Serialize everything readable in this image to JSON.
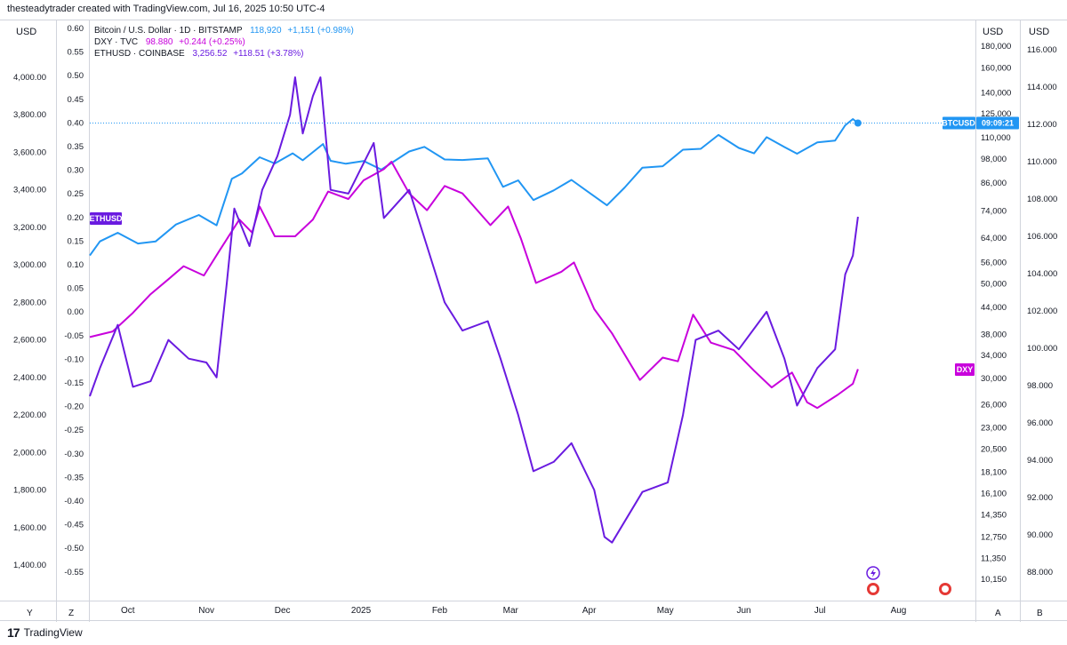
{
  "header": {
    "text": "thesteadytrader created with TradingView.com, Jul 16, 2025 10:50 UTC-4"
  },
  "footer": {
    "brand": "TradingView"
  },
  "scales": {
    "left_unit": "USD",
    "right_unit_1": "USD",
    "right_unit_2": "USD",
    "left_eth_ticks": [
      "4,000.00",
      "3,800.00",
      "3,600.00",
      "3,400.00",
      "3,200.00",
      "3,000.00",
      "2,800.00",
      "2,600.00",
      "2,400.00",
      "2,200.00",
      "2,000.00",
      "1,800.00",
      "1,600.00",
      "1,400.00"
    ],
    "left_dxy_change_ticks": [
      "0.60",
      "0.55",
      "0.50",
      "0.45",
      "0.40",
      "0.35",
      "0.30",
      "0.25",
      "0.20",
      "0.15",
      "0.10",
      "0.05",
      "0.00",
      "-0.05",
      "-0.10",
      "-0.15",
      "-0.20",
      "-0.25",
      "-0.30",
      "-0.35",
      "-0.40",
      "-0.45",
      "-0.50",
      "-0.55"
    ],
    "right_btc_ticks": [
      "180,000",
      "160,000",
      "140,000",
      "125,000",
      "110,000",
      "98,000",
      "86,000",
      "74,000",
      "64,000",
      "56,000",
      "50,000",
      "44,000",
      "38,000",
      "34,000",
      "30,000",
      "26,000",
      "23,000",
      "20,500",
      "18,100",
      "16,100",
      "14,350",
      "12,750",
      "11,350",
      "10,150"
    ],
    "right_dxy_ticks": [
      "116.000",
      "114.000",
      "112.000",
      "110.000",
      "108.000",
      "106.000",
      "104.000",
      "102.000",
      "100.000",
      "98.000",
      "96.000",
      "94.000",
      "92.000",
      "90.000",
      "88.000"
    ],
    "time_labels": [
      "Oct",
      "Nov",
      "Dec",
      "2025",
      "Feb",
      "Mar",
      "Apr",
      "May",
      "Jun",
      "Jul",
      "Aug"
    ],
    "bottom_left_buttons": [
      "Y",
      "Z"
    ],
    "bottom_right_buttons": [
      "A",
      "B"
    ]
  },
  "legend": {
    "btc": {
      "label": "Bitcoin / U.S. Dollar · 1D · BITSTAMP",
      "value": "118,920",
      "change": "+1,151 (+0.98%)",
      "color": "#2196f3"
    },
    "dxy": {
      "label": "DXY · TVC",
      "value": "98.880",
      "change": "+0.244 (+0.25%)",
      "color": "#c800dc"
    },
    "eth": {
      "label": "ETHUSD · COINBASE",
      "value": "3,256.52",
      "change": "+118.51 (+3.78%)",
      "color": "#6a1be0"
    }
  },
  "badges": {
    "eth": "ETHUSD",
    "dxy": "DXY",
    "btc_symbol": "BTCUSD",
    "btc_countdown": "09:09:21"
  },
  "chart_data": {
    "type": "line",
    "x_range": [
      "2024-09-16",
      "2025-08-31"
    ],
    "series": [
      {
        "name": "Bitcoin / U.S. Dollar",
        "color": "#2196f3",
        "scale": "BTC (log, USD)",
        "points": [
          [
            "2024-09-16",
            58200
          ],
          [
            "2024-09-20",
            62800
          ],
          [
            "2024-09-27",
            65800
          ],
          [
            "2024-10-05",
            62100
          ],
          [
            "2024-10-12",
            62800
          ],
          [
            "2024-10-20",
            68800
          ],
          [
            "2024-10-29",
            72400
          ],
          [
            "2024-11-05",
            68500
          ],
          [
            "2024-11-11",
            88000
          ],
          [
            "2024-11-15",
            90600
          ],
          [
            "2024-11-22",
            98900
          ],
          [
            "2024-11-28",
            95600
          ],
          [
            "2024-12-05",
            101000
          ],
          [
            "2024-12-09",
            97300
          ],
          [
            "2024-12-17",
            106200
          ],
          [
            "2024-12-20",
            97000
          ],
          [
            "2024-12-26",
            95500
          ],
          [
            "2025-01-02",
            96900
          ],
          [
            "2025-01-09",
            92500
          ],
          [
            "2025-01-20",
            102000
          ],
          [
            "2025-01-26",
            104600
          ],
          [
            "2025-02-03",
            97700
          ],
          [
            "2025-02-10",
            97400
          ],
          [
            "2025-02-20",
            98300
          ],
          [
            "2025-02-26",
            84300
          ],
          [
            "2025-03-04",
            87300
          ],
          [
            "2025-03-10",
            78500
          ],
          [
            "2025-03-18",
            82700
          ],
          [
            "2025-03-25",
            87500
          ],
          [
            "2025-03-31",
            82500
          ],
          [
            "2025-04-08",
            76300
          ],
          [
            "2025-04-15",
            84000
          ],
          [
            "2025-04-22",
            93500
          ],
          [
            "2025-04-30",
            94200
          ],
          [
            "2025-05-08",
            103000
          ],
          [
            "2025-05-15",
            103500
          ],
          [
            "2025-05-22",
            111500
          ],
          [
            "2025-05-30",
            104000
          ],
          [
            "2025-06-05",
            101000
          ],
          [
            "2025-06-10",
            110200
          ],
          [
            "2025-06-17",
            104500
          ],
          [
            "2025-06-22",
            100800
          ],
          [
            "2025-06-30",
            107100
          ],
          [
            "2025-07-07",
            108200
          ],
          [
            "2025-07-11",
            117500
          ],
          [
            "2025-07-14",
            121500
          ],
          [
            "2025-07-16",
            118920
          ]
        ]
      },
      {
        "name": "DXY",
        "color": "#c800dc",
        "scale": "DXY (index)",
        "points": [
          [
            "2024-09-16",
            100.6
          ],
          [
            "2024-09-25",
            100.9
          ],
          [
            "2024-10-03",
            101.9
          ],
          [
            "2024-10-10",
            102.9
          ],
          [
            "2024-10-17",
            103.7
          ],
          [
            "2024-10-23",
            104.4
          ],
          [
            "2024-10-31",
            103.9
          ],
          [
            "2024-11-06",
            105.2
          ],
          [
            "2024-11-14",
            106.9
          ],
          [
            "2024-11-19",
            106.2
          ],
          [
            "2024-11-22",
            107.6
          ],
          [
            "2024-11-28",
            106.0
          ],
          [
            "2024-12-06",
            106.0
          ],
          [
            "2024-12-13",
            106.9
          ],
          [
            "2024-12-19",
            108.4
          ],
          [
            "2024-12-27",
            108.0
          ],
          [
            "2025-01-02",
            109.0
          ],
          [
            "2025-01-10",
            109.6
          ],
          [
            "2025-01-13",
            110.0
          ],
          [
            "2025-01-20",
            108.3
          ],
          [
            "2025-01-27",
            107.4
          ],
          [
            "2025-02-03",
            108.7
          ],
          [
            "2025-02-10",
            108.3
          ],
          [
            "2025-02-21",
            106.6
          ],
          [
            "2025-02-28",
            107.6
          ],
          [
            "2025-03-05",
            105.9
          ],
          [
            "2025-03-11",
            103.5
          ],
          [
            "2025-03-21",
            104.1
          ],
          [
            "2025-03-26",
            104.6
          ],
          [
            "2025-04-03",
            102.1
          ],
          [
            "2025-04-10",
            100.8
          ],
          [
            "2025-04-21",
            98.3
          ],
          [
            "2025-04-30",
            99.5
          ],
          [
            "2025-05-06",
            99.3
          ],
          [
            "2025-05-12",
            101.8
          ],
          [
            "2025-05-19",
            100.3
          ],
          [
            "2025-05-28",
            99.9
          ],
          [
            "2025-06-05",
            98.8
          ],
          [
            "2025-06-12",
            97.9
          ],
          [
            "2025-06-20",
            98.7
          ],
          [
            "2025-06-26",
            97.1
          ],
          [
            "2025-06-30",
            96.8
          ],
          [
            "2025-07-08",
            97.5
          ],
          [
            "2025-07-14",
            98.1
          ],
          [
            "2025-07-16",
            98.88
          ]
        ]
      },
      {
        "name": "ETHUSD",
        "color": "#6a1be0",
        "scale": "ETH (USD)",
        "points": [
          [
            "2024-09-16",
            2300
          ],
          [
            "2024-09-20",
            2450
          ],
          [
            "2024-09-27",
            2680
          ],
          [
            "2024-10-03",
            2350
          ],
          [
            "2024-10-10",
            2380
          ],
          [
            "2024-10-17",
            2600
          ],
          [
            "2024-10-25",
            2500
          ],
          [
            "2024-11-01",
            2480
          ],
          [
            "2024-11-05",
            2400
          ],
          [
            "2024-11-09",
            2900
          ],
          [
            "2024-11-12",
            3300
          ],
          [
            "2024-11-18",
            3100
          ],
          [
            "2024-11-23",
            3400
          ],
          [
            "2024-11-29",
            3580
          ],
          [
            "2024-12-04",
            3800
          ],
          [
            "2024-12-06",
            4000
          ],
          [
            "2024-12-09",
            3700
          ],
          [
            "2024-12-13",
            3900
          ],
          [
            "2024-12-16",
            4000
          ],
          [
            "2024-12-20",
            3400
          ],
          [
            "2024-12-27",
            3380
          ],
          [
            "2025-01-06",
            3650
          ],
          [
            "2025-01-10",
            3250
          ],
          [
            "2025-01-20",
            3400
          ],
          [
            "2025-01-27",
            3100
          ],
          [
            "2025-02-03",
            2800
          ],
          [
            "2025-02-10",
            2650
          ],
          [
            "2025-02-20",
            2700
          ],
          [
            "2025-02-25",
            2500
          ],
          [
            "2025-03-04",
            2200
          ],
          [
            "2025-03-10",
            1900
          ],
          [
            "2025-03-18",
            1950
          ],
          [
            "2025-03-25",
            2050
          ],
          [
            "2025-04-03",
            1800
          ],
          [
            "2025-04-07",
            1550
          ],
          [
            "2025-04-10",
            1520
          ],
          [
            "2025-04-22",
            1790
          ],
          [
            "2025-05-02",
            1840
          ],
          [
            "2025-05-08",
            2200
          ],
          [
            "2025-05-13",
            2600
          ],
          [
            "2025-05-22",
            2650
          ],
          [
            "2025-05-30",
            2550
          ],
          [
            "2025-06-10",
            2750
          ],
          [
            "2025-06-17",
            2500
          ],
          [
            "2025-06-22",
            2250
          ],
          [
            "2025-06-30",
            2450
          ],
          [
            "2025-07-07",
            2550
          ],
          [
            "2025-07-11",
            2950
          ],
          [
            "2025-07-14",
            3050
          ],
          [
            "2025-07-16",
            3256.52
          ]
        ]
      }
    ],
    "last_values": {
      "btc": 118920,
      "dxy": 98.88,
      "eth": 3256.52
    }
  }
}
